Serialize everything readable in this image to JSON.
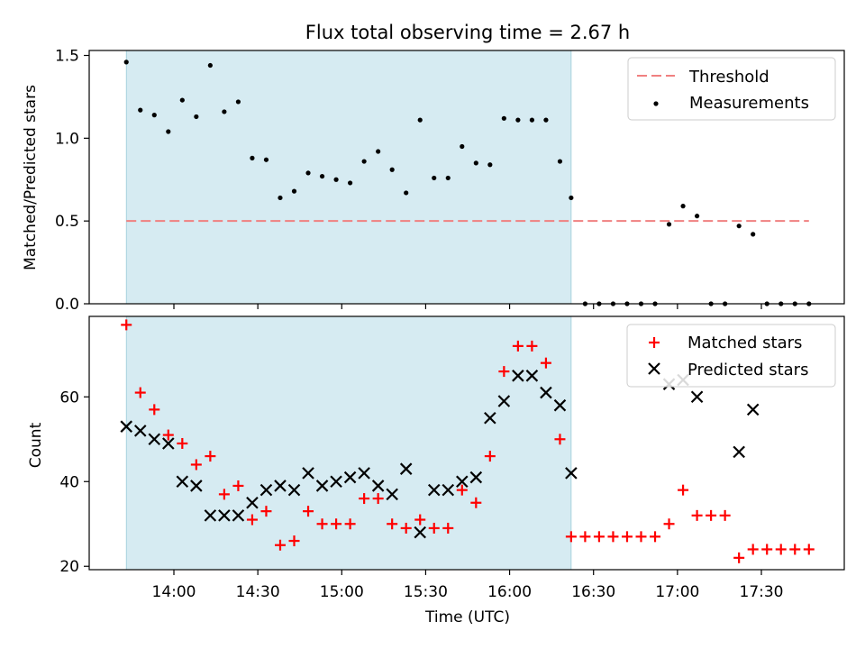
{
  "title": "Flux total observing time = 2.67 h",
  "chart_data": [
    {
      "type": "scatter",
      "panel": "top",
      "ylabel": "Matched/Predicted stars",
      "ylim": [
        0,
        1.53
      ],
      "yticks": [
        "0.0",
        "0.5",
        "1.0",
        "1.5"
      ],
      "shaded_x": [
        "13:43",
        "16:22"
      ],
      "threshold": {
        "name": "Threshold",
        "y": 0.5,
        "x_start": "13:43",
        "x_end": "17:47",
        "color": "#f08080"
      },
      "legend": {
        "placement": "top-right",
        "entries": [
          "Threshold",
          "Measurements"
        ]
      },
      "series": [
        {
          "name": "Measurements",
          "color": "#000000",
          "x": [
            "13:43",
            "13:48",
            "13:53",
            "13:58",
            "14:03",
            "14:08",
            "14:13",
            "14:18",
            "14:23",
            "14:28",
            "14:33",
            "14:38",
            "14:43",
            "14:48",
            "14:53",
            "14:58",
            "15:03",
            "15:08",
            "15:13",
            "15:18",
            "15:23",
            "15:28",
            "15:33",
            "15:38",
            "15:43",
            "15:48",
            "15:53",
            "15:58",
            "16:03",
            "16:08",
            "16:13",
            "16:18",
            "16:22",
            "16:27",
            "16:32",
            "16:37",
            "16:42",
            "16:47",
            "16:52",
            "16:57",
            "17:02",
            "17:07",
            "17:12",
            "17:17",
            "17:22",
            "17:27",
            "17:32",
            "17:37",
            "17:42",
            "17:47"
          ],
          "y": [
            1.46,
            1.17,
            1.14,
            1.04,
            1.23,
            1.13,
            1.44,
            1.16,
            1.22,
            0.88,
            0.87,
            0.64,
            0.68,
            0.79,
            0.77,
            0.75,
            0.73,
            0.86,
            0.92,
            0.81,
            0.67,
            1.11,
            0.76,
            0.76,
            0.95,
            0.85,
            0.84,
            1.12,
            1.11,
            1.11,
            1.11,
            0.86,
            0.64,
            0,
            0,
            0,
            0,
            0,
            0,
            0.48,
            0.59,
            0.53,
            0,
            0,
            0.47,
            0.42,
            0,
            0,
            0,
            0
          ]
        }
      ]
    },
    {
      "type": "scatter",
      "panel": "bottom",
      "xlabel": "Time (UTC)",
      "ylabel": "Count",
      "ylim": [
        19.2,
        79
      ],
      "yticks": [
        "20",
        "40",
        "60"
      ],
      "xticks": [
        "14:00",
        "14:30",
        "15:00",
        "15:30",
        "16:00",
        "16:30",
        "17:00",
        "17:30"
      ],
      "shaded_x": [
        "13:43",
        "16:22"
      ],
      "legend": {
        "placement": "top-right",
        "entries": [
          "Matched stars",
          "Predicted stars"
        ]
      },
      "series": [
        {
          "name": "Matched stars",
          "marker": "+",
          "color": "#ff0000",
          "x": [
            "13:43",
            "13:48",
            "13:53",
            "13:58",
            "14:03",
            "14:08",
            "14:13",
            "14:18",
            "14:23",
            "14:28",
            "14:33",
            "14:38",
            "14:43",
            "14:48",
            "14:53",
            "14:58",
            "15:03",
            "15:08",
            "15:13",
            "15:18",
            "15:23",
            "15:28",
            "15:33",
            "15:38",
            "15:43",
            "15:48",
            "15:53",
            "15:58",
            "16:03",
            "16:08",
            "16:13",
            "16:18",
            "16:22",
            "16:27",
            "16:32",
            "16:37",
            "16:42",
            "16:47",
            "16:52",
            "16:57",
            "17:02",
            "17:07",
            "17:12",
            "17:17",
            "17:22",
            "17:27",
            "17:32",
            "17:37",
            "17:42",
            "17:47"
          ],
          "y": [
            77,
            61,
            57,
            51,
            49,
            44,
            46,
            37,
            39,
            31,
            33,
            25,
            26,
            33,
            30,
            30,
            30,
            36,
            36,
            30,
            29,
            31,
            29,
            29,
            38,
            35,
            46,
            66,
            72,
            72,
            68,
            50,
            27,
            27,
            27,
            27,
            27,
            27,
            27,
            30,
            38,
            32,
            32,
            32,
            22,
            24,
            24,
            24,
            24,
            24
          ]
        },
        {
          "name": "Predicted stars",
          "marker": "x",
          "color": "#000000",
          "x": [
            "13:43",
            "13:48",
            "13:53",
            "13:58",
            "14:03",
            "14:08",
            "14:13",
            "14:18",
            "14:23",
            "14:28",
            "14:33",
            "14:38",
            "14:43",
            "14:48",
            "14:53",
            "14:58",
            "15:03",
            "15:08",
            "15:13",
            "15:18",
            "15:23",
            "15:28",
            "15:33",
            "15:38",
            "15:43",
            "15:48",
            "15:53",
            "15:58",
            "16:03",
            "16:08",
            "16:13",
            "16:18",
            "16:22",
            "16:57",
            "17:02",
            "17:07",
            "17:22",
            "17:27"
          ],
          "y": [
            53,
            52,
            50,
            49,
            40,
            39,
            32,
            32,
            32,
            35,
            38,
            39,
            38,
            42,
            39,
            40,
            41,
            42,
            39,
            37,
            43,
            28,
            38,
            38,
            40,
            41,
            55,
            59,
            65,
            65,
            61,
            58,
            42,
            63,
            64,
            60,
            47,
            57
          ]
        }
      ]
    }
  ]
}
